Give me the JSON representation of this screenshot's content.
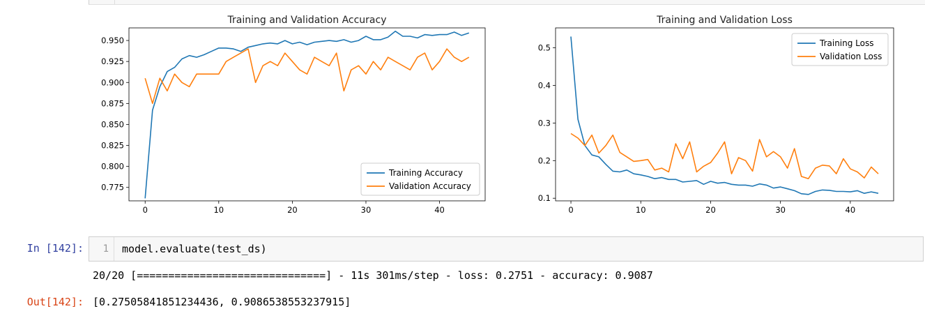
{
  "notebook": {
    "cell": {
      "in_prompt": "In [142]:",
      "line_number": "1",
      "code": "model.evaluate(test_ds)",
      "stream_output": "20/20 [==============================] - 11s 301ms/step - loss: 0.2751 - accuracy: 0.9087",
      "out_prompt": "Out[142]:",
      "result": "[0.27505841851234436, 0.9086538553237915]"
    }
  },
  "chart_data": [
    {
      "type": "line",
      "title": "Training and Validation Accuracy",
      "xlabel": "",
      "ylabel": "",
      "xlim": [
        -2.2,
        46.2
      ],
      "ylim": [
        0.759,
        0.965
      ],
      "xticks": [
        0,
        10,
        20,
        30,
        40
      ],
      "yticks": [
        "0.775",
        "0.800",
        "0.825",
        "0.850",
        "0.875",
        "0.900",
        "0.925",
        "0.950"
      ],
      "grid": false,
      "legend_position": "lower-right",
      "series": [
        {
          "name": "Training Accuracy",
          "color": "#1f77b4",
          "values": [
            0.762,
            0.867,
            0.895,
            0.913,
            0.918,
            0.928,
            0.932,
            0.93,
            0.933,
            0.937,
            0.941,
            0.941,
            0.94,
            0.937,
            0.942,
            0.944,
            0.946,
            0.947,
            0.946,
            0.95,
            0.946,
            0.948,
            0.945,
            0.948,
            0.949,
            0.95,
            0.949,
            0.951,
            0.948,
            0.95,
            0.955,
            0.951,
            0.951,
            0.954,
            0.961,
            0.955,
            0.955,
            0.953,
            0.957,
            0.956,
            0.957,
            0.957,
            0.96,
            0.956,
            0.959
          ]
        },
        {
          "name": "Validation Accuracy",
          "color": "#ff7f0e",
          "values": [
            0.905,
            0.875,
            0.905,
            0.89,
            0.91,
            0.9,
            0.895,
            0.91,
            0.91,
            0.91,
            0.91,
            0.925,
            0.93,
            0.935,
            0.94,
            0.9,
            0.92,
            0.925,
            0.92,
            0.935,
            0.925,
            0.915,
            0.91,
            0.93,
            0.925,
            0.92,
            0.935,
            0.89,
            0.915,
            0.92,
            0.91,
            0.925,
            0.915,
            0.93,
            0.925,
            0.92,
            0.915,
            0.93,
            0.935,
            0.915,
            0.925,
            0.94,
            0.93,
            0.925,
            0.93
          ]
        }
      ]
    },
    {
      "type": "line",
      "title": "Training and Validation Loss",
      "xlabel": "",
      "ylabel": "",
      "xlim": [
        -2.2,
        46.2
      ],
      "ylim": [
        0.093,
        0.553
      ],
      "xticks": [
        0,
        10,
        20,
        30,
        40
      ],
      "yticks": [
        "0.1",
        "0.2",
        "0.3",
        "0.4",
        "0.5"
      ],
      "grid": false,
      "legend_position": "upper-right",
      "series": [
        {
          "name": "Training Loss",
          "color": "#1f77b4",
          "values": [
            0.53,
            0.31,
            0.24,
            0.215,
            0.21,
            0.19,
            0.172,
            0.17,
            0.175,
            0.165,
            0.162,
            0.158,
            0.152,
            0.155,
            0.15,
            0.15,
            0.143,
            0.145,
            0.147,
            0.137,
            0.145,
            0.14,
            0.142,
            0.137,
            0.135,
            0.135,
            0.132,
            0.138,
            0.135,
            0.127,
            0.13,
            0.125,
            0.12,
            0.112,
            0.11,
            0.118,
            0.122,
            0.121,
            0.118,
            0.118,
            0.117,
            0.12,
            0.113,
            0.117,
            0.113
          ]
        },
        {
          "name": "Validation Loss",
          "color": "#ff7f0e",
          "values": [
            0.272,
            0.26,
            0.24,
            0.268,
            0.22,
            0.24,
            0.268,
            0.222,
            0.21,
            0.198,
            0.2,
            0.203,
            0.175,
            0.18,
            0.17,
            0.245,
            0.205,
            0.25,
            0.17,
            0.185,
            0.195,
            0.22,
            0.25,
            0.165,
            0.208,
            0.2,
            0.172,
            0.256,
            0.21,
            0.224,
            0.21,
            0.18,
            0.232,
            0.158,
            0.152,
            0.18,
            0.188,
            0.186,
            0.165,
            0.205,
            0.178,
            0.17,
            0.154,
            0.183,
            0.165
          ]
        }
      ]
    }
  ]
}
